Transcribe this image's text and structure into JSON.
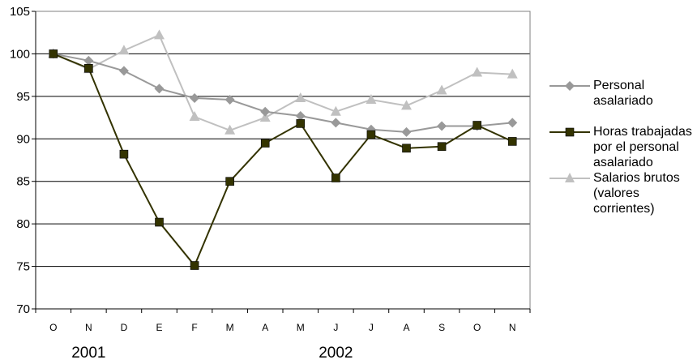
{
  "chart_data": {
    "type": "line",
    "categories": [
      "O",
      "N",
      "D",
      "E",
      "F",
      "M",
      "A",
      "M",
      "J",
      "J",
      "A",
      "S",
      "O",
      "N"
    ],
    "year_labels": [
      {
        "label": "2001",
        "category_index": 1
      },
      {
        "label": "2002",
        "category_index": 8
      }
    ],
    "ylim": [
      70,
      105
    ],
    "yticks": [
      70,
      75,
      80,
      85,
      90,
      95,
      100,
      105
    ],
    "grid": true,
    "legend_position": "right",
    "series": [
      {
        "name": "Personal asalariado",
        "color": "#999999",
        "marker": "diamond",
        "values": [
          100,
          99.2,
          98.0,
          95.9,
          94.8,
          94.6,
          93.2,
          92.7,
          91.9,
          91.1,
          90.8,
          91.5,
          91.5,
          91.9
        ]
      },
      {
        "name": "Horas trabajadas por el personal asalariado",
        "color": "#333300",
        "marker": "square",
        "values": [
          100,
          98.3,
          88.2,
          80.2,
          75.1,
          85.0,
          89.5,
          91.8,
          85.4,
          90.5,
          88.9,
          89.1,
          91.6,
          89.7
        ]
      },
      {
        "name": "Salarios brutos (valores corrientes)",
        "color": "#c0c0c0",
        "marker": "triangle",
        "values": [
          100,
          98.2,
          100.4,
          102.2,
          92.6,
          91.0,
          92.5,
          94.8,
          93.2,
          94.6,
          93.9,
          95.7,
          97.8,
          97.6
        ]
      }
    ]
  }
}
